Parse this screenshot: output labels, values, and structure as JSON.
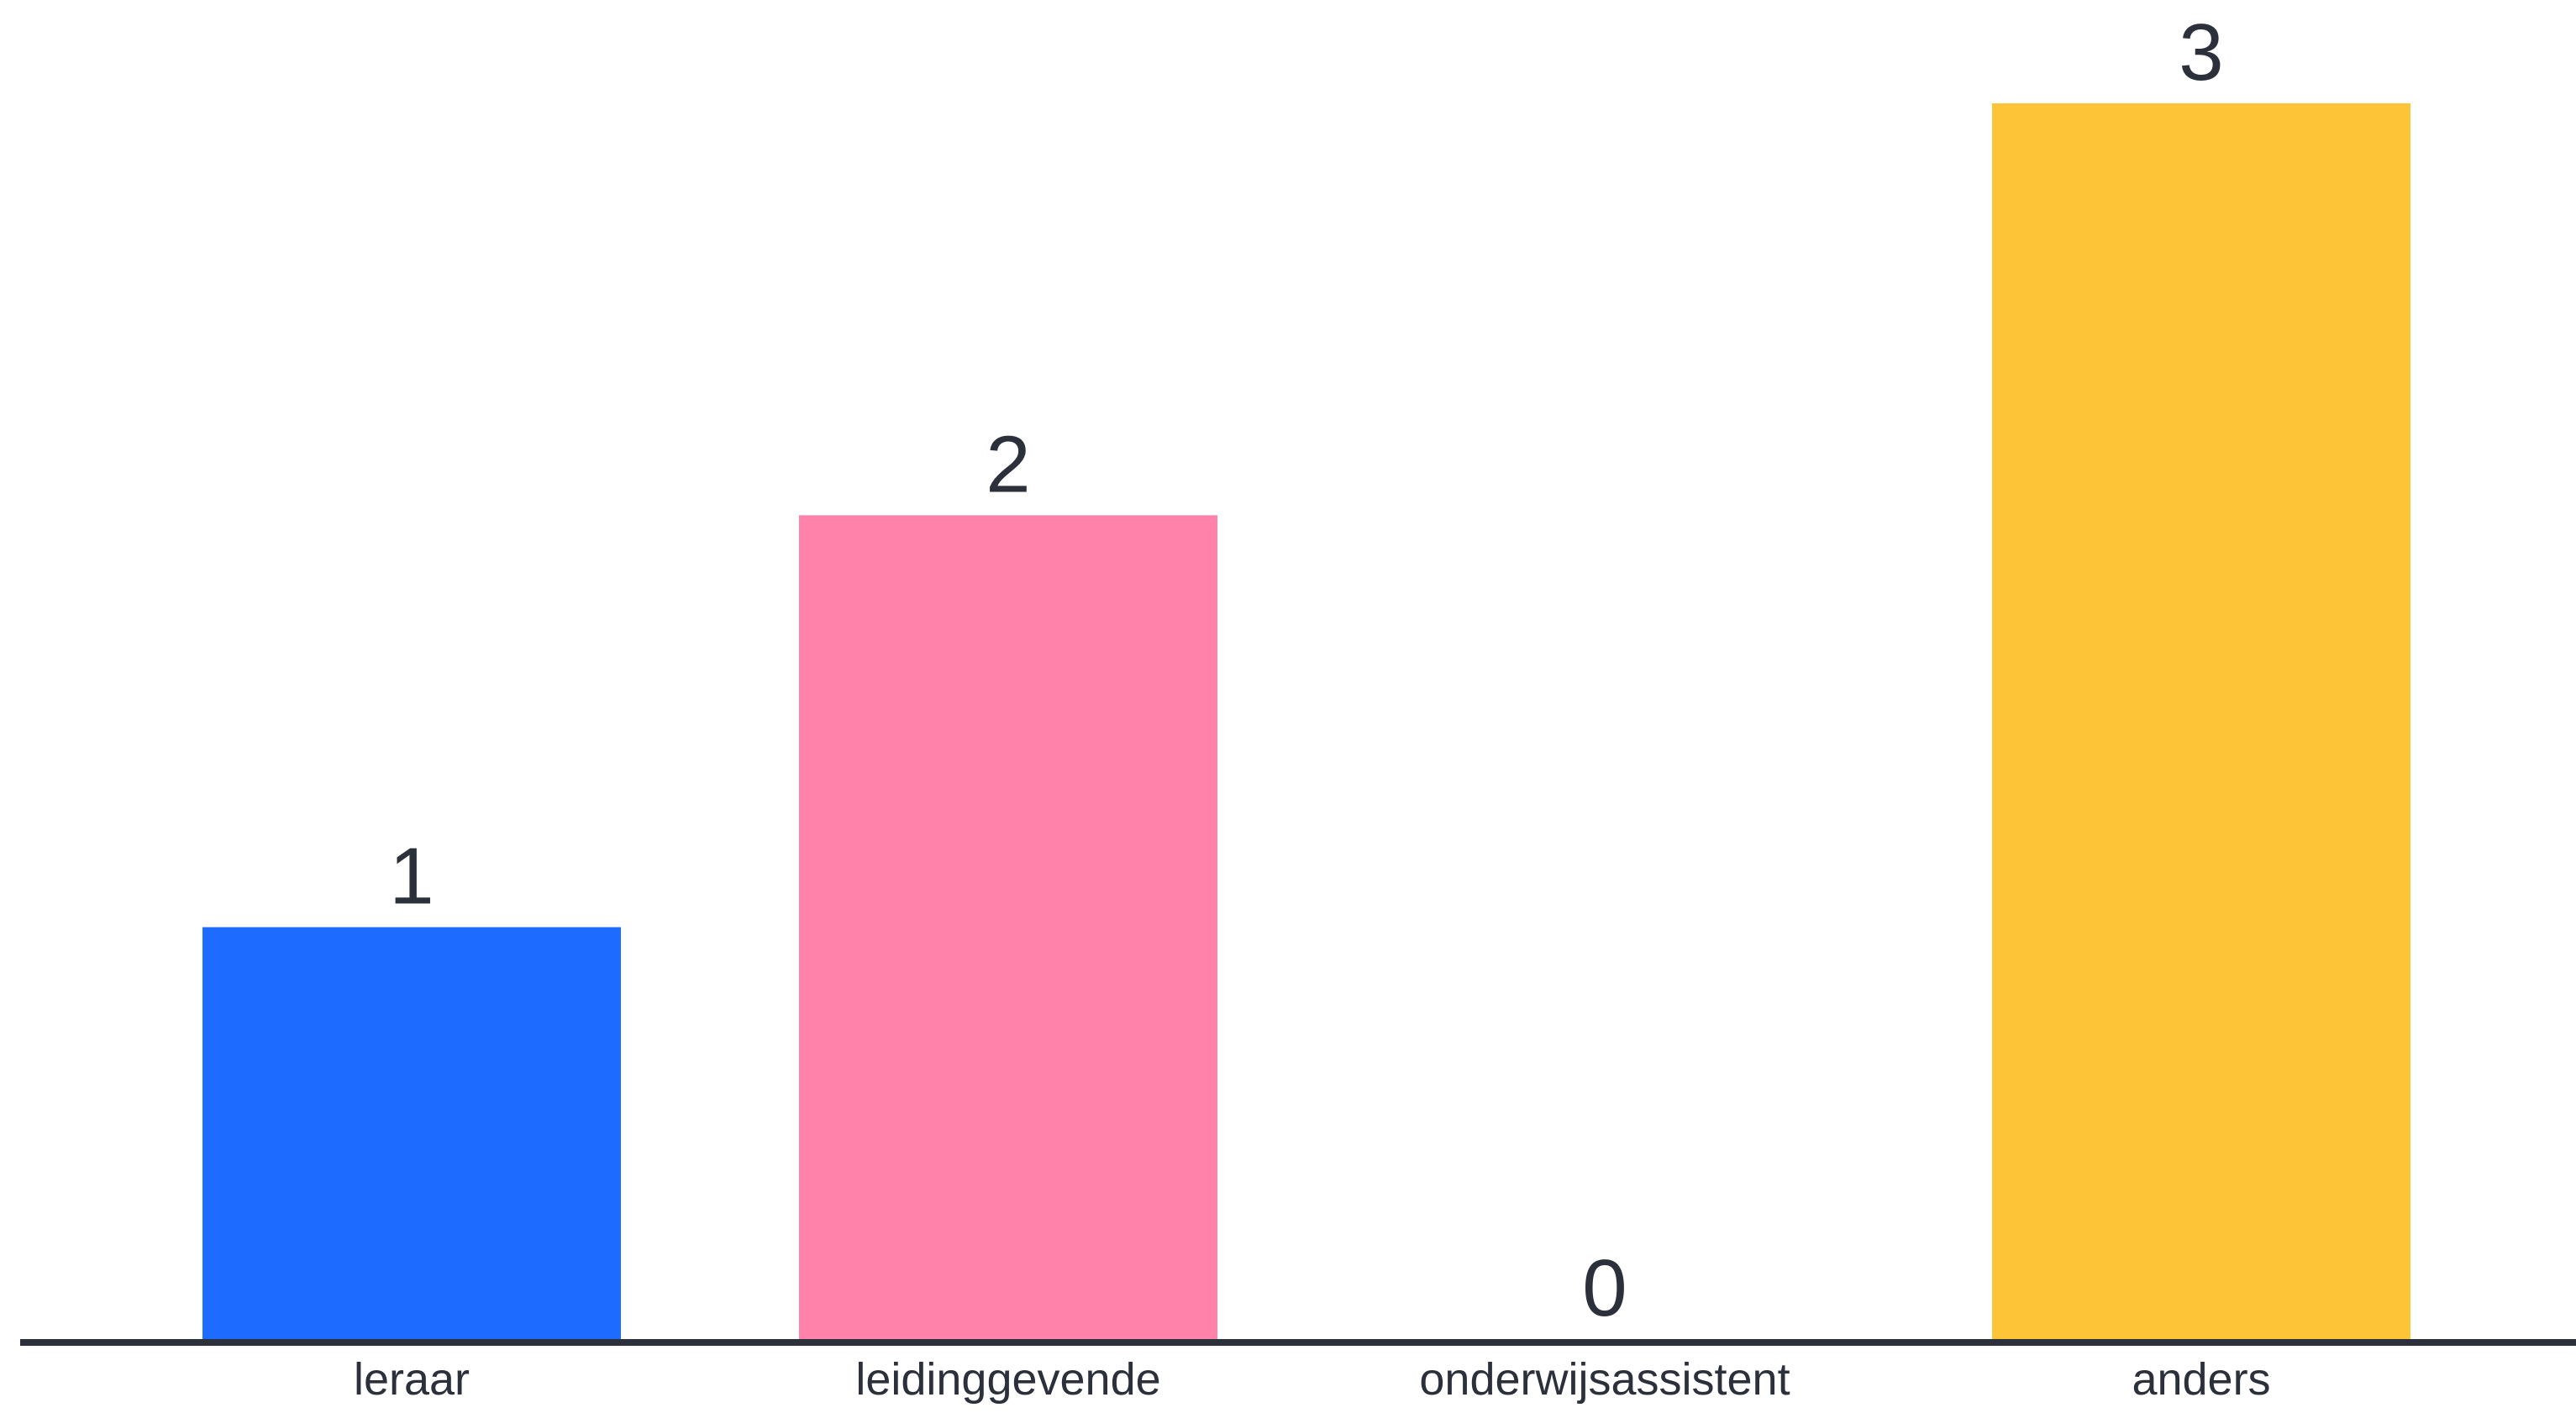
{
  "chart_data": {
    "type": "bar",
    "categories": [
      "leraar",
      "leidinggevende",
      "onderwijsassistent",
      "anders"
    ],
    "values": [
      1,
      2,
      0,
      3
    ],
    "colors": [
      "#1d6cff",
      "#ff82aa",
      "#ffffff",
      "#fdc437"
    ],
    "ylim": [
      0,
      3
    ],
    "grid": false,
    "legend": "none",
    "axis_color": "#2b303b",
    "text_color": "#2b303b"
  }
}
